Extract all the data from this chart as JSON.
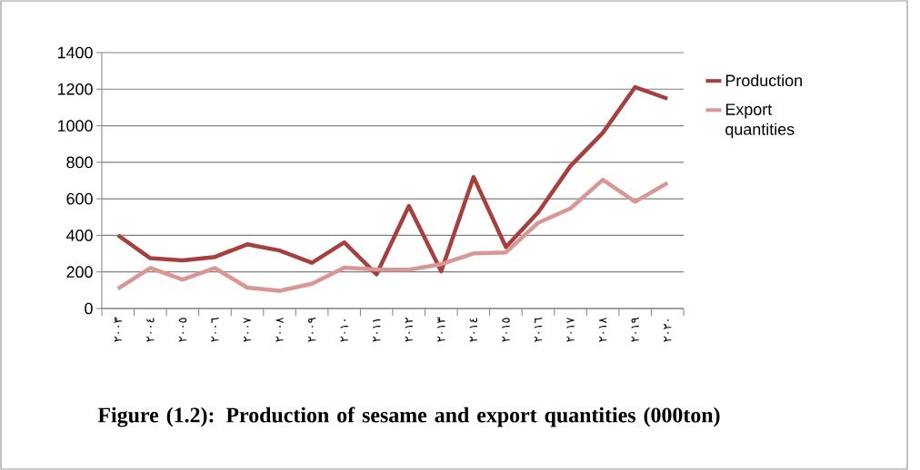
{
  "chart_data": {
    "type": "line",
    "title": "Figure (1.2): Production of sesame and export quantities (000ton)",
    "categories": [
      "٢٠٠٣",
      "٢٠٠٤",
      "٢٠٠٥",
      "٢٠٠٦",
      "٢٠٠٧",
      "٢٠٠٨",
      "٢٠٠٩",
      "٢٠١٠",
      "٢٠١١",
      "٢٠١٢",
      "٢٠١٣",
      "٢٠١٤",
      "٢٠١٥",
      "٢٠١٦",
      "٢٠١٧",
      "٢٠١٨",
      "٢٠١٩",
      "٢٠٢٠"
    ],
    "series": [
      {
        "name": "Production",
        "color": "#a5403f",
        "values": [
          401,
          275,
          263,
          282,
          351,
          317,
          250,
          362,
          187,
          561,
          204,
          719,
          336,
          526,
          780,
          961,
          1211,
          1148
        ]
      },
      {
        "name": "Export quantities",
        "color": "#d99694",
        "values": [
          109,
          221,
          158,
          221,
          114,
          97,
          135,
          223,
          214,
          212,
          242,
          301,
          307,
          469,
          547,
          704,
          584,
          687
        ]
      }
    ],
    "ylim": [
      0,
      1400
    ],
    "yticks": [
      0,
      200,
      400,
      600,
      800,
      1000,
      1200,
      1400
    ],
    "grid": "y",
    "legend": "right"
  }
}
